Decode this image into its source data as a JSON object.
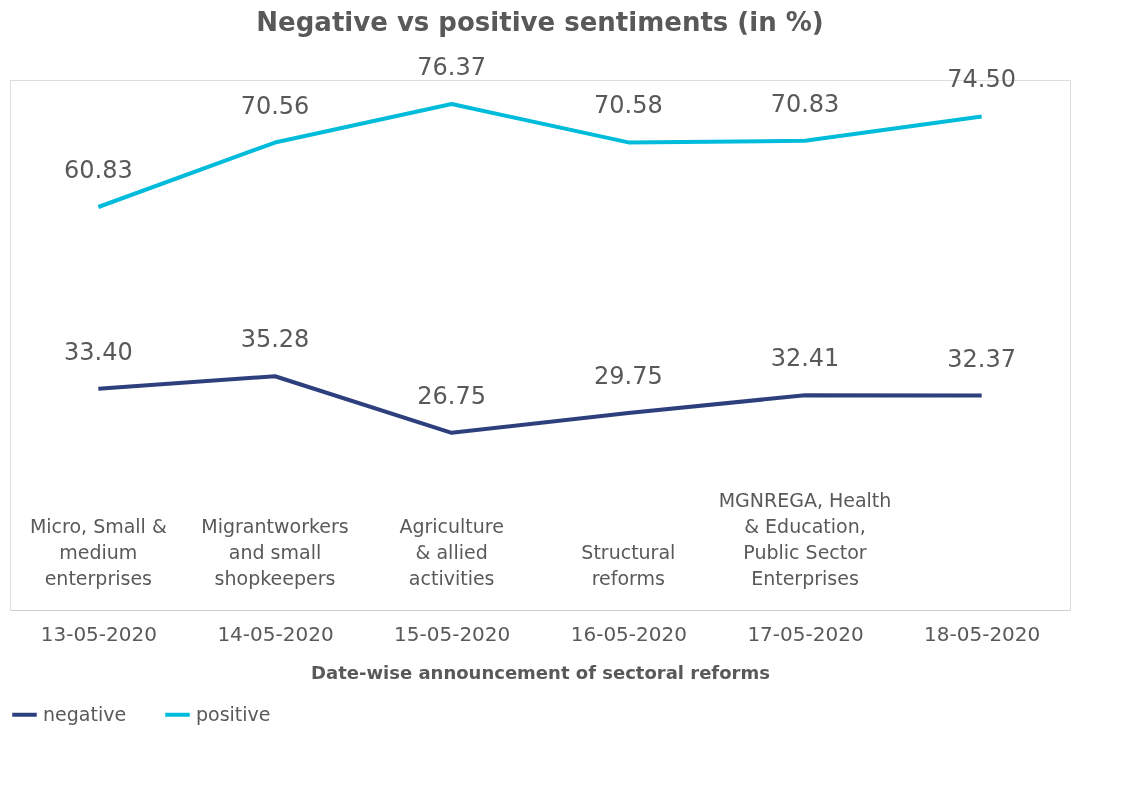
{
  "chart_data": {
    "type": "line",
    "title": "Negative vs positive sentiments (in %)",
    "xlabel": "Date-wise announcement of sectoral reforms",
    "categories": [
      "13-05-2020",
      "14-05-2020",
      "15-05-2020",
      "16-05-2020",
      "17-05-2020",
      "18-05-2020"
    ],
    "series": [
      {
        "name": "negative",
        "color": "#2e3f7e",
        "values": [
          33.4,
          35.28,
          26.75,
          29.75,
          32.41,
          32.37
        ],
        "value_labels": [
          "33.40",
          "35.28",
          "26.75",
          "29.75",
          "32.41",
          "32.37"
        ]
      },
      {
        "name": "positive",
        "color": "#00bcda",
        "values": [
          60.83,
          70.56,
          76.37,
          70.58,
          70.83,
          74.5
        ],
        "value_labels": [
          "60.83",
          "70.56",
          "76.37",
          "70.58",
          "70.83",
          "74.50"
        ]
      }
    ],
    "annotations": [
      "Micro, Small &\nmedium\nenterprises",
      "Migrantworkers\nand small\nshopkeepers",
      "Agriculture\n& allied\nactivities",
      "Structural\nreforms",
      "MGNREGA, Health\n& Education,\nPublic Sector\nEnterprises"
    ],
    "grid": false,
    "legend": "bottom",
    "marker": "none",
    "line_style": "solid"
  }
}
